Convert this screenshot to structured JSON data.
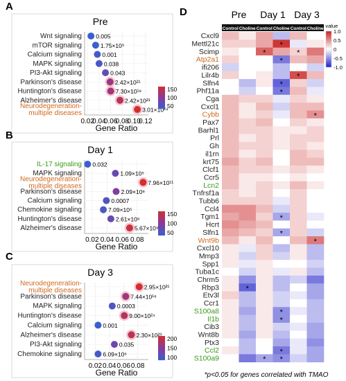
{
  "figure": {
    "panel_labels": [
      "A",
      "B",
      "C",
      "D"
    ],
    "gene_ratio_label": "Gene Ratio",
    "footnote": "*p<0.05 for genes correlated with TMAO"
  },
  "chart_data": [
    {
      "panel": "A",
      "type": "scatter",
      "title": "Pre",
      "xlabel": "Gene Ratio",
      "xlim": [
        0.015,
        0.125
      ],
      "xticks": [
        "0.02",
        "0.04",
        "0.06",
        "0.08",
        "0.10",
        "0.12"
      ],
      "xtick_values": [
        0.02,
        0.04,
        0.06,
        0.08,
        0.1,
        0.12
      ],
      "categories": [
        "Wnt signaling",
        "mTOR signaling",
        "Calcium signaling",
        "MAPK signaling",
        "PI3-Akt signaling",
        "Parkinson's disease",
        "Huntington's disease",
        "Alzheimer's disease",
        "Neurodegeneration-\nmultiple diseases"
      ],
      "category_colors": [
        "#222222",
        "#222222",
        "#222222",
        "#222222",
        "#222222",
        "#222222",
        "#222222",
        "#222222",
        "#d2691e"
      ],
      "x": [
        0.026,
        0.034,
        0.037,
        0.04,
        0.051,
        0.059,
        0.06,
        0.076,
        0.106
      ],
      "p_value_labels": [
        "0.005",
        "1.75×10⁵",
        "0.001",
        "0.038",
        "0.043",
        "2.42×10²¹",
        "7.30×10¹⁹",
        "2.42×10²¹",
        "3.01×10²⁴"
      ],
      "count": [
        40,
        50,
        55,
        60,
        75,
        110,
        115,
        130,
        165
      ],
      "legend": {
        "ticks": [
          "50",
          "100",
          "150"
        ],
        "range": [
          50,
          150
        ]
      }
    },
    {
      "panel": "B",
      "type": "scatter",
      "title": "Day 1",
      "xlabel": "Gene Ratio",
      "xlim": [
        0.01,
        0.095
      ],
      "xticks": [
        "0.02",
        "0.04",
        "0.06",
        "0.08"
      ],
      "xtick_values": [
        0.02,
        0.04,
        0.06,
        0.08
      ],
      "categories": [
        "IL-17 signaling",
        "MAPK signaling",
        "Neurodegeneration-\nmultiple diseases",
        "Parkinson's disease",
        "Calcium signaling",
        "Chemokine signaling",
        "Huntington's disease",
        "Alzheimer's disease"
      ],
      "category_colors": [
        "#3a9a1a",
        "#222222",
        "#d2691e",
        "#222222",
        "#222222",
        "#222222",
        "#222222",
        "#222222"
      ],
      "x": [
        0.014,
        0.051,
        0.088,
        0.052,
        0.039,
        0.035,
        0.045,
        0.07
      ],
      "p_value_labels": [
        "0.032",
        "1.09×10⁵",
        "7.96×10¹¹",
        "2.09×10⁸",
        "0.0007",
        "7.09×10⁵",
        "2.61×10⁸",
        "5.67×10⁹"
      ],
      "count": [
        40,
        80,
        170,
        95,
        65,
        60,
        80,
        145
      ],
      "legend": {
        "ticks": [
          "50",
          "100",
          "150"
        ],
        "range": [
          50,
          150
        ]
      }
    },
    {
      "panel": "C",
      "type": "scatter",
      "title": "Day 3",
      "xlabel": "Gene Ratio",
      "xlim": [
        0.005,
        0.095
      ],
      "xticks": [
        "0.02",
        "0.04",
        "0.06",
        "0.08"
      ],
      "xtick_values": [
        0.02,
        0.04,
        0.06,
        0.08
      ],
      "categories": [
        "Neurodegeneration-\nmultiple diseases",
        "Parkinson's disease",
        "MAPK signaling",
        "Huntington's disease",
        "Calcium signaling",
        "Alzheimer's disease",
        "PI3-Akt signaling",
        "Chemokine signaling"
      ],
      "category_colors": [
        "#d2691e",
        "#222222",
        "#222222",
        "#222222",
        "#222222",
        "#222222",
        "#222222",
        "#222222"
      ],
      "x": [
        0.082,
        0.063,
        0.044,
        0.061,
        0.024,
        0.071,
        0.047,
        0.024
      ],
      "p_value_labels": [
        "2.95×10²¹",
        "7.44×10¹⁸",
        "0.0003",
        "9.00×10²⁴",
        "0.001",
        "2.30×10²⁰",
        "0.035",
        "6.09×10⁶"
      ],
      "count": [
        210,
        155,
        80,
        175,
        60,
        185,
        105,
        70
      ],
      "legend": {
        "ticks": [
          "100",
          "150",
          "200"
        ],
        "range": [
          60,
          210
        ]
      }
    },
    {
      "panel": "D",
      "type": "heatmap",
      "timepoints": [
        "Pre",
        "Day 1",
        "Day 3"
      ],
      "columns": [
        "Control",
        "Choline",
        "Control",
        "Choline",
        "Control",
        "Choline"
      ],
      "color_scale": {
        "title": "r value",
        "ticks": [
          "1.0",
          "0.5",
          "0",
          "-0.5",
          "-1.0"
        ],
        "low": "#2020c8",
        "mid": "#ffffff",
        "high": "#c82020"
      },
      "genes": [
        "Cxcl9",
        "Mettl21c",
        "Scimp",
        "Atp2a1",
        "ifi206",
        "Lilr4b",
        "Slfn4",
        "Phf11a",
        "Cga",
        "Cxcl1",
        "Cybb",
        "Pax7",
        "Barhl1",
        "Prl",
        "Gh",
        "il1rn",
        "krt75",
        "Clcf1",
        "Ccr5",
        "Lcn2",
        "Tnfrsf1a",
        "Tubb6",
        "Ccl4",
        "Tgm1",
        "Hcrt",
        "Slfn1",
        "Wnt9b",
        "Cxcl10",
        "Mmp3",
        "Spp1",
        "Tuba1c",
        "Chrm5",
        "Rbp3",
        "Etv3l",
        "Ccr1",
        "S100a8",
        "Il1b",
        "Cib3",
        "Wnt8b",
        "Ptx3",
        "Ccl2",
        "S100a9"
      ],
      "gene_colors": {
        "Atp2a1": "#d2691e",
        "Cybb": "#d2691e",
        "Wnt9b": "#d2691e",
        "Lcn2": "#3a9a1a",
        "S100a8": "#3a9a1a",
        "Il1b": "#3a9a1a",
        "Ccl2": "#3a9a1a",
        "S100a9": "#3a9a1a"
      },
      "values": [
        [
          0.3,
          0.1,
          0.4,
          -0.3,
          0.3,
          0.0
        ],
        [
          0.2,
          0.2,
          0.4,
          0.9,
          -0.1,
          0.1
        ],
        [
          0.1,
          0.0,
          0.7,
          0.4,
          0.2,
          0.6
        ],
        [
          0.2,
          0.0,
          0.0,
          -0.6,
          0.3,
          0.4
        ],
        [
          -0.2,
          0.0,
          0.0,
          -0.3,
          0.0,
          -0.2
        ],
        [
          0.2,
          0.0,
          0.1,
          -0.3,
          0.8,
          0.3
        ],
        [
          0.0,
          -0.3,
          0.1,
          -0.7,
          0.2,
          -0.2
        ],
        [
          0.0,
          -0.2,
          0.0,
          -0.6,
          0.3,
          -0.1
        ],
        [
          0.3,
          0.2,
          0.2,
          -0.1,
          0.2,
          0.1
        ],
        [
          0.3,
          0.1,
          0.3,
          -0.2,
          0.3,
          0.3
        ],
        [
          0.3,
          0.1,
          0.2,
          -0.1,
          0.3,
          0.5
        ],
        [
          0.3,
          0.2,
          0.3,
          0.0,
          0.2,
          0.1
        ],
        [
          0.3,
          0.2,
          0.2,
          0.1,
          0.1,
          0.2
        ],
        [
          0.3,
          0.1,
          0.2,
          0.1,
          0.2,
          0.2
        ],
        [
          0.3,
          0.2,
          0.2,
          0.1,
          0.2,
          0.1
        ],
        [
          0.3,
          0.1,
          0.2,
          0.0,
          0.3,
          0.2
        ],
        [
          0.4,
          0.2,
          0.3,
          0.0,
          0.3,
          0.3
        ],
        [
          0.3,
          0.2,
          0.2,
          0.1,
          0.2,
          0.1
        ],
        [
          0.3,
          0.1,
          0.1,
          0.0,
          0.1,
          0.0
        ],
        [
          0.3,
          0.1,
          0.2,
          0.1,
          0.3,
          0.1
        ],
        [
          0.2,
          0.1,
          0.2,
          0.0,
          0.2,
          0.0
        ],
        [
          0.2,
          0.2,
          0.2,
          -0.1,
          0.2,
          0.0
        ],
        [
          0.5,
          0.5,
          0.3,
          -0.2,
          0.2,
          0.0
        ],
        [
          0.4,
          0.5,
          0.2,
          -0.4,
          0.2,
          -0.1
        ],
        [
          0.5,
          0.4,
          0.3,
          0.0,
          0.2,
          0.0
        ],
        [
          0.4,
          0.3,
          0.2,
          -0.4,
          0.2,
          -0.2
        ],
        [
          0.3,
          0.1,
          0.3,
          0.0,
          0.3,
          0.6
        ],
        [
          0.1,
          -0.1,
          0.2,
          -0.3,
          0.1,
          -0.3
        ],
        [
          0.1,
          -0.2,
          0.2,
          -0.2,
          0.1,
          -0.3
        ],
        [
          0.1,
          -0.1,
          0.1,
          0.0,
          0.0,
          -0.2
        ],
        [
          0.0,
          -0.2,
          0.1,
          -0.1,
          0.1,
          -0.3
        ],
        [
          0.1,
          -0.5,
          0.1,
          -0.3,
          -0.2,
          -0.6
        ],
        [
          0.1,
          -0.7,
          0.1,
          -0.3,
          0.0,
          -0.4
        ],
        [
          0.2,
          -0.3,
          0.1,
          -0.2,
          -0.1,
          -0.4
        ],
        [
          0.1,
          -0.3,
          0.1,
          -0.2,
          0.0,
          -0.3
        ],
        [
          0.1,
          -0.4,
          0.1,
          -0.5,
          -0.1,
          -0.3
        ],
        [
          0.1,
          -0.3,
          0.1,
          -0.5,
          0.0,
          -0.3
        ],
        [
          0.1,
          -0.3,
          0.1,
          -0.2,
          -0.1,
          -0.4
        ],
        [
          0.1,
          -0.4,
          0.1,
          -0.3,
          0.0,
          -0.4
        ],
        [
          0.0,
          -0.3,
          0.0,
          -0.4,
          -0.1,
          -0.5
        ],
        [
          0.1,
          -0.3,
          0.0,
          -0.6,
          -0.1,
          -0.4
        ],
        [
          0.0,
          -0.6,
          -0.4,
          -0.5,
          -0.2,
          -0.4
        ]
      ],
      "significant": [
        [
          1,
          3
        ],
        [
          2,
          2
        ],
        [
          2,
          4
        ],
        [
          3,
          3
        ],
        [
          5,
          4
        ],
        [
          6,
          3
        ],
        [
          7,
          3
        ],
        [
          10,
          5
        ],
        [
          23,
          3
        ],
        [
          25,
          3
        ],
        [
          26,
          5
        ],
        [
          32,
          1
        ],
        [
          35,
          3
        ],
        [
          36,
          3
        ],
        [
          40,
          3
        ],
        [
          41,
          2
        ],
        [
          41,
          3
        ]
      ]
    }
  ]
}
